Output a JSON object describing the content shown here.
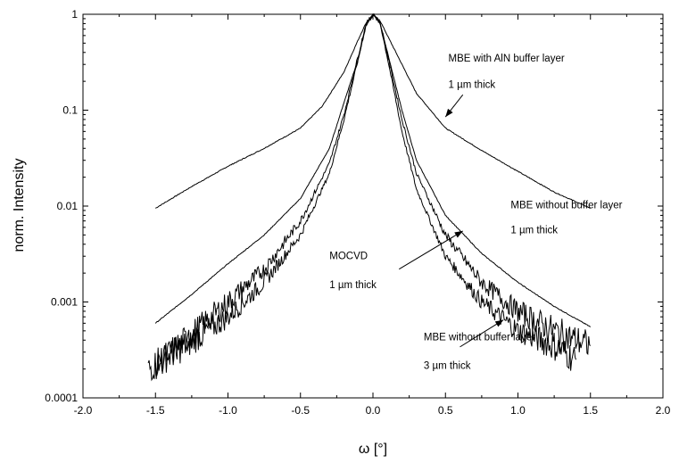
{
  "chart_data": {
    "type": "line",
    "xlabel": "ω [°]",
    "ylabel": "norm. Intensity",
    "xlim": [
      -2.0,
      2.0
    ],
    "ylim": [
      0.0001,
      1
    ],
    "yscale": "log",
    "grid": false,
    "legend": "none",
    "x_ticks": [
      -2.0,
      -1.5,
      -1.0,
      -0.5,
      0.0,
      0.5,
      1.0,
      1.5,
      2.0
    ],
    "x_tick_labels": [
      "-2.0",
      "-1.5",
      "-1.0",
      "-0.5",
      "0.0",
      "0.5",
      "1.0",
      "1.5",
      "2.0"
    ],
    "y_ticks": [
      0.0001,
      0.001,
      0.01,
      0.1,
      1
    ],
    "y_tick_labels": [
      "0.0001",
      "0.001",
      "0.01",
      "0.1",
      "1"
    ],
    "series": [
      {
        "noise": false,
        "points": [
          [
            -1.5,
            0.0095
          ],
          [
            -1.25,
            0.016
          ],
          [
            -1.0,
            0.026
          ],
          [
            -0.75,
            0.04
          ],
          [
            -0.5,
            0.065
          ],
          [
            -0.35,
            0.11
          ],
          [
            -0.2,
            0.25
          ],
          [
            -0.1,
            0.55
          ],
          [
            -0.05,
            0.8
          ],
          [
            0.0,
            1.0
          ],
          [
            0.05,
            0.85
          ],
          [
            0.1,
            0.6
          ],
          [
            0.2,
            0.3
          ],
          [
            0.3,
            0.15
          ],
          [
            0.5,
            0.065
          ],
          [
            0.75,
            0.038
          ],
          [
            1.0,
            0.023
          ],
          [
            1.25,
            0.014
          ],
          [
            1.5,
            0.0095
          ]
        ]
      },
      {
        "noise": false,
        "points": [
          [
            -1.5,
            0.0006
          ],
          [
            -1.25,
            0.0012
          ],
          [
            -1.0,
            0.0025
          ],
          [
            -0.75,
            0.005
          ],
          [
            -0.5,
            0.012
          ],
          [
            -0.3,
            0.04
          ],
          [
            -0.2,
            0.12
          ],
          [
            -0.1,
            0.35
          ],
          [
            -0.05,
            0.75
          ],
          [
            0.0,
            1.0
          ],
          [
            0.05,
            0.8
          ],
          [
            0.1,
            0.4
          ],
          [
            0.2,
            0.1
          ],
          [
            0.3,
            0.03
          ],
          [
            0.5,
            0.008
          ],
          [
            0.75,
            0.0032
          ],
          [
            1.0,
            0.0016
          ],
          [
            1.25,
            0.0009
          ],
          [
            1.5,
            0.00055
          ]
        ]
      },
      {
        "noise": true,
        "points": [
          [
            -1.55,
            0.0002
          ],
          [
            -1.3,
            0.00035
          ],
          [
            -1.0,
            0.0007
          ],
          [
            -0.75,
            0.0016
          ],
          [
            -0.5,
            0.005
          ],
          [
            -0.3,
            0.022
          ],
          [
            -0.2,
            0.08
          ],
          [
            -0.1,
            0.35
          ],
          [
            -0.05,
            0.75
          ],
          [
            0.0,
            1.0
          ],
          [
            0.05,
            0.8
          ],
          [
            0.1,
            0.35
          ],
          [
            0.2,
            0.06
          ],
          [
            0.3,
            0.015
          ],
          [
            0.5,
            0.003
          ],
          [
            0.75,
            0.001
          ],
          [
            1.0,
            0.0005
          ],
          [
            1.25,
            0.00035
          ],
          [
            1.4,
            0.00025
          ]
        ]
      },
      {
        "noise": true,
        "points": [
          [
            -1.5,
            0.00022
          ],
          [
            -1.25,
            0.00045
          ],
          [
            -1.0,
            0.001
          ],
          [
            -0.75,
            0.0022
          ],
          [
            -0.5,
            0.007
          ],
          [
            -0.3,
            0.028
          ],
          [
            -0.2,
            0.09
          ],
          [
            -0.1,
            0.38
          ],
          [
            -0.05,
            0.78
          ],
          [
            0.0,
            1.0
          ],
          [
            0.05,
            0.82
          ],
          [
            0.1,
            0.38
          ],
          [
            0.2,
            0.08
          ],
          [
            0.3,
            0.022
          ],
          [
            0.5,
            0.005
          ],
          [
            0.75,
            0.0016
          ],
          [
            1.0,
            0.0008
          ],
          [
            1.25,
            0.0005
          ],
          [
            1.5,
            0.00035
          ]
        ]
      }
    ],
    "annotations": [
      {
        "lines": [
          "MBE with AlN buffer layer",
          "1 µm thick"
        ],
        "text_x": 0.52,
        "text_y": [
          0.32,
          0.17
        ],
        "arrow_from": [
          0.62,
          0.145
        ],
        "arrow_to": [
          0.5,
          0.085
        ]
      },
      {
        "lines": [
          "MBE without buffer layer",
          "1 µm thick"
        ],
        "text_x": 0.95,
        "text_y": [
          0.0095,
          0.0052
        ],
        "arrow_from": [
          0.97,
          0.0075
        ],
        "arrow_to": [
          0.97,
          0.0075
        ]
      },
      {
        "lines": [
          "MOCVD",
          "1 µm thick"
        ],
        "text_x": -0.3,
        "text_y": [
          0.0028,
          0.0014
        ],
        "arrow_from": [
          0.18,
          0.0022
        ],
        "arrow_to": [
          0.62,
          0.0055
        ]
      },
      {
        "lines": [
          "MBE  without buffer layer",
          "3 µm thick"
        ],
        "text_x": 0.35,
        "text_y": [
          0.0004,
          0.0002
        ],
        "arrow_from": [
          0.6,
          0.00034
        ],
        "arrow_to": [
          0.9,
          0.00065
        ]
      }
    ]
  }
}
